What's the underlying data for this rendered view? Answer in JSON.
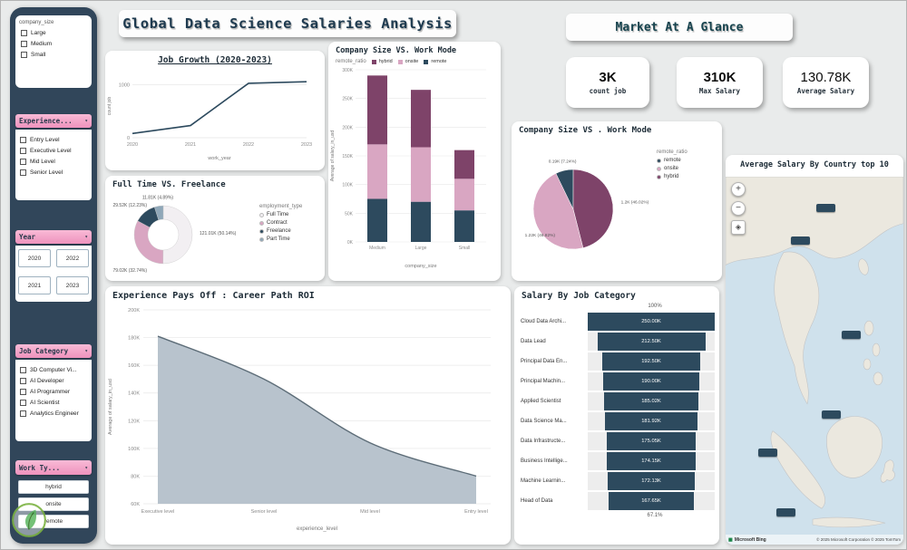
{
  "title_banner": "Global Data Science Salaries Analysis",
  "market": {
    "title": "Market At A Glance",
    "kpis": [
      {
        "value": "3K",
        "label": "count job"
      },
      {
        "value": "310K",
        "label": "Max Salary"
      },
      {
        "value": "130.78K",
        "label": "Average Salary"
      }
    ]
  },
  "sidebar": {
    "company_size": {
      "title": "company_size",
      "options": [
        "Large",
        "Medium",
        "Small"
      ]
    },
    "experience": {
      "title": "Experience...",
      "options": [
        "Entry Level",
        "Executive Level",
        "Mid Level",
        "Senior Level"
      ]
    },
    "year": {
      "title": "Year",
      "options": [
        "2020",
        "2022",
        "2021",
        "2023"
      ]
    },
    "job_category": {
      "title": "Job Category",
      "options": [
        "3D Computer Vi...",
        "AI Developer",
        "AI Programmer",
        "AI Scientist",
        "Analytics Engineer"
      ]
    },
    "work_type": {
      "title": "Work Ty...",
      "options": [
        "hybrid",
        "onsite",
        "remote"
      ]
    }
  },
  "map": {
    "title": "Average Salary By Country top 10",
    "brand": "Microsoft Bing",
    "attribution": "© 2025 Microsoft Corporation © 2025 TomTom"
  },
  "chart_data": [
    {
      "id": "job_growth",
      "type": "line",
      "title": "Job Growth (2020-2023)",
      "x": [
        "2020",
        "2021",
        "2022",
        "2023"
      ],
      "values": [
        80,
        230,
        1030,
        1060
      ],
      "xlabel": "work_year",
      "ylabel": "count job",
      "ylim": [
        0,
        1200
      ],
      "yticks": [
        0,
        1000
      ],
      "color": "#2d4a5e"
    },
    {
      "id": "employment",
      "type": "donut",
      "title": "Full Time VS. Freelance",
      "legend_title": "employment_type",
      "slices": [
        {
          "name": "Full Time",
          "value": 121.01,
          "label": "121.01K (50.14%)",
          "color": "#f2eff2"
        },
        {
          "name": "Contract",
          "value": 79.02,
          "label": "79.02K (32.74%)",
          "color": "#d9a6c2"
        },
        {
          "name": "Freelance",
          "value": 29.52,
          "label": "29.52K (12.23%)",
          "color": "#2d4a5e"
        },
        {
          "name": "Part Time",
          "value": 11.81,
          "label": "11.81K (4.89%)",
          "color": "#8fa7b8"
        }
      ]
    },
    {
      "id": "size_mode_bar",
      "type": "stacked_bar",
      "title": "Company Size VS. Work Mode",
      "legend_title": "remote_ratio",
      "categories": [
        "Medium",
        "Large",
        "Small"
      ],
      "series": [
        {
          "name": "hybrid",
          "color": "#7e4369",
          "values": [
            120,
            100,
            50
          ]
        },
        {
          "name": "onsite",
          "color": "#d9a6c2",
          "values": [
            95,
            95,
            55
          ]
        },
        {
          "name": "remote",
          "color": "#2d4a5e",
          "values": [
            75,
            70,
            55
          ]
        }
      ],
      "stack_order": [
        "remote",
        "onsite",
        "hybrid"
      ],
      "xlabel": "company_size",
      "ylabel": "Average of salary_in_usd",
      "ylim": [
        0,
        300
      ],
      "yticks": [
        0,
        50,
        100,
        150,
        200,
        250,
        300
      ],
      "ytick_suffix": "K"
    },
    {
      "id": "size_mode_pie",
      "type": "pie",
      "title": "Company Size VS . Work Mode",
      "legend_title": "remote_ratio",
      "start_angle": 334,
      "order": [
        "remote",
        "hybrid",
        "onsite"
      ],
      "slices": [
        {
          "name": "remote",
          "value": 7.24,
          "label": "0.19K (7.24%)",
          "color": "#2d4a5e"
        },
        {
          "name": "onsite",
          "value": 46.82,
          "label": "1.22K (46.82%)",
          "color": "#d9a6c2"
        },
        {
          "name": "hybrid",
          "value": 46.02,
          "label": "1.2K (46.02%)",
          "color": "#7e4369"
        }
      ]
    },
    {
      "id": "experience_area",
      "type": "area",
      "title": "Experience Pays Off : Career Path ROI",
      "categories": [
        "Executive level",
        "Senior level",
        "Mid level",
        "Entry level"
      ],
      "values": [
        181,
        150,
        104,
        80
      ],
      "xlabel": "experience_level",
      "ylabel": "Average of salary_in_usd",
      "ylim": [
        60,
        200
      ],
      "yticks": [
        60,
        80,
        100,
        120,
        140,
        160,
        180,
        200
      ],
      "ytick_suffix": "K",
      "fill": "#b8c3cd",
      "stroke": "#5d6d78"
    },
    {
      "id": "salary_funnel",
      "type": "funnel",
      "title": "Salary By Job Category",
      "top_label": "100%",
      "bottom_label": "67.1%",
      "bar_color": "#2d4a5e",
      "rows": [
        {
          "category": "Cloud Data Archi...",
          "label": "250.00K",
          "value": 250.0
        },
        {
          "category": "Data Lead",
          "label": "212.50K",
          "value": 212.5
        },
        {
          "category": "Principal Data En...",
          "label": "192.50K",
          "value": 192.5
        },
        {
          "category": "Principal Machin...",
          "label": "190.00K",
          "value": 190.0
        },
        {
          "category": "Applied Scientist",
          "label": "185.02K",
          "value": 185.02
        },
        {
          "category": "Data Science Ma...",
          "label": "181.92K",
          "value": 181.92
        },
        {
          "category": "Data Infrastructe...",
          "label": "175.05K",
          "value": 175.05
        },
        {
          "category": "Business Intellige...",
          "label": "174.15K",
          "value": 174.15
        },
        {
          "category": "Machine Learnin...",
          "label": "172.13K",
          "value": 172.13
        },
        {
          "category": "Head of Data",
          "label": "167.65K",
          "value": 167.65
        }
      ]
    }
  ]
}
